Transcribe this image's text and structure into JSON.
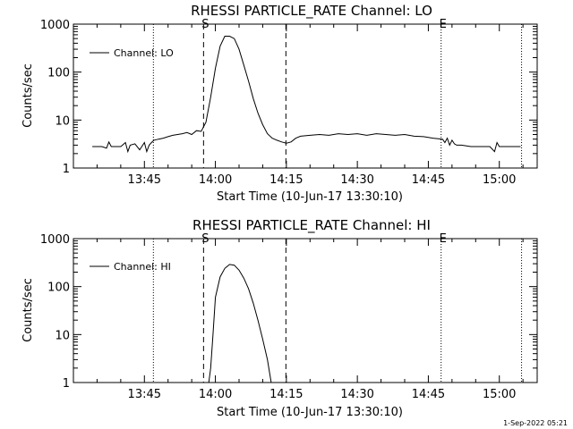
{
  "footer_timestamp": "1-Sep-2022 05:21",
  "chart_data": [
    {
      "type": "line",
      "title": "RHESSI PARTICLE_RATE Channel: LO",
      "xlabel": "Start Time (10-Jun-17 13:30:10)",
      "ylabel": "Counts/sec",
      "yscale": "log",
      "ylim": [
        1,
        1000
      ],
      "xlim_minutes": [
        0,
        98
      ],
      "x_ticks": [
        {
          "minute": 15,
          "label": "13:45"
        },
        {
          "minute": 30,
          "label": "14:00"
        },
        {
          "minute": 45,
          "label": "14:15"
        },
        {
          "minute": 60,
          "label": "14:30"
        },
        {
          "minute": 75,
          "label": "14:45"
        },
        {
          "minute": 90,
          "label": "15:00"
        }
      ],
      "y_ticks": [
        {
          "value": 1,
          "label": "1"
        },
        {
          "value": 10,
          "label": "10"
        },
        {
          "value": 100,
          "label": "100"
        },
        {
          "value": 1000,
          "label": "1000"
        }
      ],
      "markers": [
        {
          "minute": 27.5,
          "style": "dashed",
          "label": "S"
        },
        {
          "minute": 44.9,
          "style": "dashed",
          "label": ""
        },
        {
          "minute": 16.9,
          "style": "dotted",
          "label": ""
        },
        {
          "minute": 77.7,
          "style": "dotted",
          "label": "E"
        },
        {
          "minute": 94.7,
          "style": "dotted",
          "label": ""
        }
      ],
      "legend": {
        "label": "Channel: LO",
        "position": "top-left"
      },
      "series": [
        {
          "name": "Channel: LO",
          "x": [
            4.0,
            5.0,
            6.0,
            7.0,
            7.5,
            8.0,
            9.0,
            10.0,
            11.0,
            11.5,
            12.0,
            13.0,
            14.0,
            15.0,
            15.5,
            16.0,
            16.5,
            17.0,
            18.0,
            19.0,
            20.0,
            21.0,
            22.0,
            23.0,
            24.0,
            25.0,
            26.0,
            27.0,
            28.0,
            29.0,
            30.0,
            31.0,
            32.0,
            33.0,
            34.0,
            35.0,
            36.0,
            37.0,
            38.0,
            39.0,
            40.0,
            41.0,
            42.0,
            43.0,
            44.0,
            45.0,
            46.0,
            47.0,
            48.0,
            50.0,
            52.0,
            54.0,
            56.0,
            58.0,
            60.0,
            62.0,
            64.0,
            66.0,
            68.0,
            70.0,
            72.0,
            74.0,
            76.0,
            78.0,
            78.5,
            79.0,
            79.5,
            80.0,
            80.5,
            81.0,
            82.0,
            84.0,
            86.0,
            88.0,
            89.0,
            89.5,
            90.0,
            91.0,
            92.0,
            93.0,
            94.0,
            94.5
          ],
          "y": [
            2.8,
            2.8,
            2.8,
            2.6,
            3.5,
            2.8,
            2.8,
            2.8,
            3.4,
            2.2,
            3.0,
            3.2,
            2.4,
            3.4,
            2.2,
            3.0,
            3.4,
            3.8,
            4.0,
            4.2,
            4.5,
            4.8,
            5.0,
            5.2,
            5.5,
            5.0,
            6.0,
            5.8,
            9.0,
            30,
            120,
            350,
            560,
            560,
            500,
            300,
            140,
            65,
            28,
            14,
            8,
            5.2,
            4.2,
            3.8,
            3.5,
            3.3,
            3.5,
            4.2,
            4.6,
            4.8,
            5.0,
            4.8,
            5.2,
            5.0,
            5.2,
            4.8,
            5.2,
            5.0,
            4.8,
            5.0,
            4.6,
            4.5,
            4.2,
            4.0,
            3.4,
            4.2,
            3.0,
            3.8,
            3.2,
            3.0,
            3.0,
            2.8,
            2.8,
            2.8,
            2.2,
            3.4,
            2.8,
            2.8,
            2.8,
            2.8,
            2.8,
            2.8
          ]
        }
      ]
    },
    {
      "type": "line",
      "title": "RHESSI PARTICLE_RATE Channel: HI",
      "xlabel": "Start Time (10-Jun-17 13:30:10)",
      "ylabel": "Counts/sec",
      "yscale": "log",
      "ylim": [
        1,
        1000
      ],
      "xlim_minutes": [
        0,
        98
      ],
      "x_ticks": [
        {
          "minute": 15,
          "label": "13:45"
        },
        {
          "minute": 30,
          "label": "14:00"
        },
        {
          "minute": 45,
          "label": "14:15"
        },
        {
          "minute": 60,
          "label": "14:30"
        },
        {
          "minute": 75,
          "label": "14:45"
        },
        {
          "minute": 90,
          "label": "15:00"
        }
      ],
      "y_ticks": [
        {
          "value": 1,
          "label": "1"
        },
        {
          "value": 10,
          "label": "10"
        },
        {
          "value": 100,
          "label": "100"
        },
        {
          "value": 1000,
          "label": "1000"
        }
      ],
      "markers": [
        {
          "minute": 27.5,
          "style": "dashed",
          "label": "S"
        },
        {
          "minute": 44.9,
          "style": "dashed",
          "label": ""
        },
        {
          "minute": 16.9,
          "style": "dotted",
          "label": ""
        },
        {
          "minute": 77.7,
          "style": "dotted",
          "label": "E"
        },
        {
          "minute": 94.7,
          "style": "dotted",
          "label": ""
        }
      ],
      "legend": {
        "label": "Channel: HI",
        "position": "top-left"
      },
      "series": [
        {
          "name": "Channel: HI",
          "x": [
            28.6,
            29.0,
            29.5,
            30.0,
            31.0,
            32.0,
            33.0,
            34.0,
            35.0,
            36.0,
            37.0,
            38.0,
            39.0,
            40.0,
            41.0,
            41.8
          ],
          "y": [
            1,
            2,
            10,
            60,
            160,
            240,
            290,
            280,
            220,
            150,
            90,
            45,
            20,
            8,
            3,
            1
          ]
        }
      ]
    }
  ]
}
